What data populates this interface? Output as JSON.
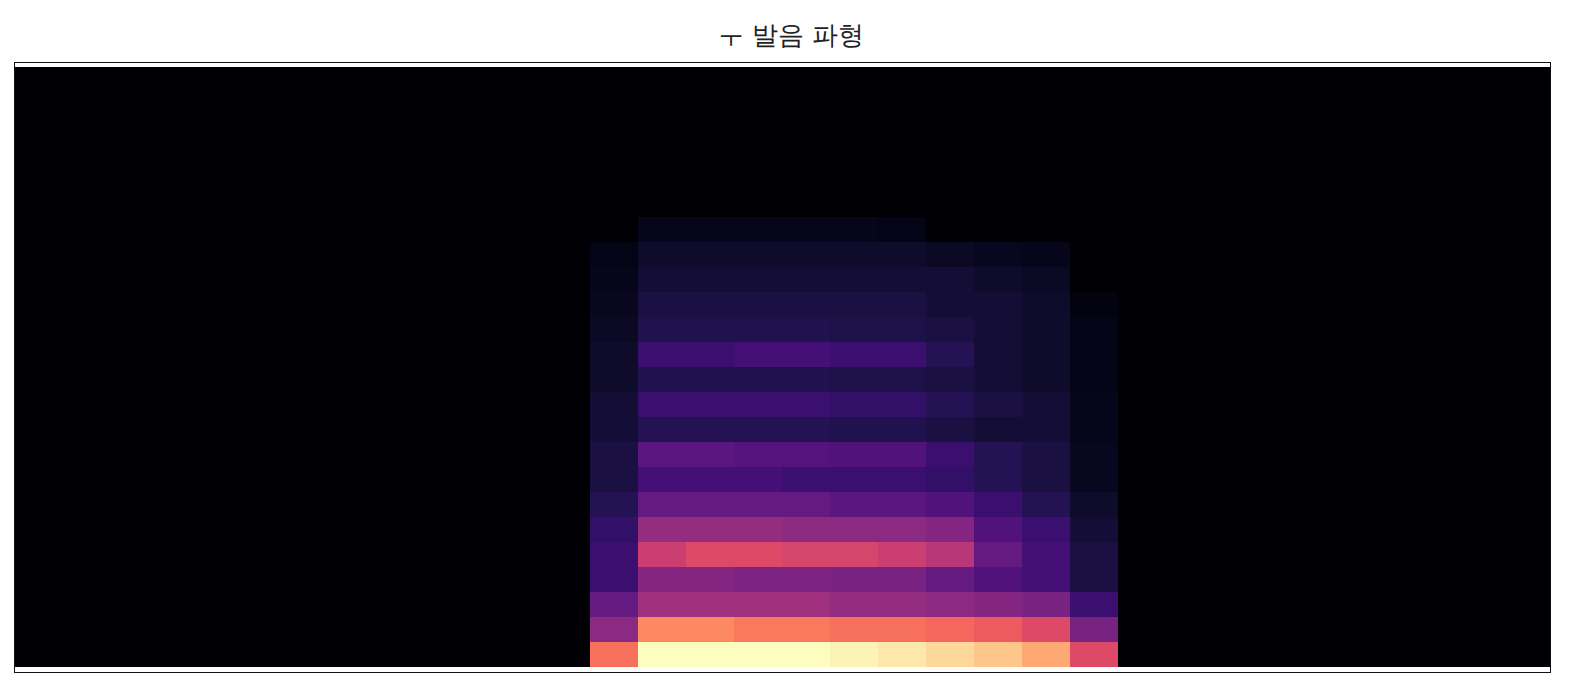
{
  "chart_data": {
    "type": "heatmap",
    "title": "ㅜ 발음 파형",
    "tick_labels": false,
    "zlim": [
      0,
      1
    ],
    "cells": [
      [
        0,
        0,
        0,
        0,
        0,
        0,
        0,
        0,
        0,
        0,
        0,
        0,
        0.7,
        1.0,
        1.0,
        1.0,
        1.0,
        0.98,
        0.95,
        0.92,
        0.88,
        0.82,
        0.6,
        0,
        0,
        0,
        0,
        0,
        0,
        0,
        0,
        0
      ],
      [
        0,
        0,
        0,
        0,
        0,
        0,
        0,
        0,
        0,
        0,
        0,
        0,
        0.4,
        0.75,
        0.75,
        0.72,
        0.72,
        0.7,
        0.7,
        0.68,
        0.65,
        0.6,
        0.35,
        0,
        0,
        0,
        0,
        0,
        0,
        0,
        0,
        0
      ],
      [
        0,
        0,
        0,
        0,
        0,
        0,
        0,
        0,
        0,
        0,
        0,
        0,
        0.3,
        0.45,
        0.45,
        0.45,
        0.45,
        0.42,
        0.42,
        0.4,
        0.38,
        0.35,
        0.2,
        0,
        0,
        0,
        0,
        0,
        0,
        0,
        0,
        0
      ],
      [
        0,
        0,
        0,
        0,
        0,
        0,
        0,
        0,
        0,
        0,
        0,
        0,
        0.2,
        0.38,
        0.38,
        0.36,
        0.36,
        0.35,
        0.35,
        0.3,
        0.25,
        0.22,
        0.12,
        0,
        0,
        0,
        0,
        0,
        0,
        0,
        0,
        0
      ],
      [
        0,
        0,
        0,
        0,
        0,
        0,
        0,
        0,
        0,
        0,
        0,
        0,
        0.2,
        0.55,
        0.6,
        0.6,
        0.58,
        0.58,
        0.55,
        0.5,
        0.3,
        0.22,
        0.12,
        0,
        0,
        0,
        0,
        0,
        0,
        0,
        0,
        0
      ],
      [
        0,
        0,
        0,
        0,
        0,
        0,
        0,
        0,
        0,
        0,
        0,
        0,
        0.18,
        0.42,
        0.42,
        0.42,
        0.4,
        0.4,
        0.4,
        0.38,
        0.25,
        0.2,
        0.1,
        0,
        0,
        0,
        0,
        0,
        0,
        0,
        0,
        0
      ],
      [
        0,
        0,
        0,
        0,
        0,
        0,
        0,
        0,
        0,
        0,
        0,
        0,
        0.15,
        0.3,
        0.3,
        0.3,
        0.3,
        0.28,
        0.28,
        0.25,
        0.2,
        0.15,
        0.08,
        0,
        0,
        0,
        0,
        0,
        0,
        0,
        0,
        0
      ],
      [
        0,
        0,
        0,
        0,
        0,
        0,
        0,
        0,
        0,
        0,
        0,
        0,
        0.12,
        0.22,
        0.22,
        0.22,
        0.2,
        0.2,
        0.2,
        0.18,
        0.15,
        0.12,
        0.06,
        0,
        0,
        0,
        0,
        0,
        0,
        0,
        0,
        0
      ],
      [
        0,
        0,
        0,
        0,
        0,
        0,
        0,
        0,
        0,
        0,
        0,
        0,
        0.12,
        0.28,
        0.28,
        0.26,
        0.26,
        0.25,
        0.25,
        0.2,
        0.15,
        0.12,
        0.06,
        0,
        0,
        0,
        0,
        0,
        0,
        0,
        0,
        0
      ],
      [
        0,
        0,
        0,
        0,
        0,
        0,
        0,
        0,
        0,
        0,
        0,
        0,
        0.1,
        0.15,
        0.15,
        0.15,
        0.15,
        0.14,
        0.14,
        0.12,
        0.1,
        0.1,
        0.05,
        0,
        0,
        0,
        0,
        0,
        0,
        0,
        0,
        0
      ],
      [
        0,
        0,
        0,
        0,
        0,
        0,
        0,
        0,
        0,
        0,
        0,
        0,
        0.1,
        0.2,
        0.2,
        0.2,
        0.2,
        0.18,
        0.18,
        0.15,
        0.12,
        0.1,
        0.05,
        0,
        0,
        0,
        0,
        0,
        0,
        0,
        0,
        0
      ],
      [
        0,
        0,
        0,
        0,
        0,
        0,
        0,
        0,
        0,
        0,
        0,
        0,
        0.08,
        0.14,
        0.14,
        0.14,
        0.14,
        0.13,
        0.13,
        0.12,
        0.1,
        0.08,
        0.04,
        0,
        0,
        0,
        0,
        0,
        0,
        0,
        0,
        0
      ],
      [
        0,
        0,
        0,
        0,
        0,
        0,
        0,
        0,
        0,
        0,
        0,
        0,
        0.08,
        0.2,
        0.2,
        0.22,
        0.22,
        0.2,
        0.2,
        0.15,
        0.1,
        0.08,
        0.04,
        0,
        0,
        0,
        0,
        0,
        0,
        0,
        0,
        0
      ],
      [
        0,
        0,
        0,
        0,
        0,
        0,
        0,
        0,
        0,
        0,
        0,
        0,
        0.07,
        0.14,
        0.14,
        0.14,
        0.14,
        0.13,
        0.13,
        0.12,
        0.1,
        0.08,
        0.04,
        0,
        0,
        0,
        0,
        0,
        0,
        0,
        0,
        0
      ],
      [
        0,
        0,
        0,
        0,
        0,
        0,
        0,
        0,
        0,
        0,
        0,
        0,
        0.06,
        0.12,
        0.12,
        0.12,
        0.12,
        0.12,
        0.12,
        0.1,
        0.1,
        0.08,
        0.03,
        0,
        0,
        0,
        0,
        0,
        0,
        0,
        0,
        0
      ],
      [
        0,
        0,
        0,
        0,
        0,
        0,
        0,
        0,
        0,
        0,
        0,
        0,
        0.05,
        0.1,
        0.1,
        0.1,
        0.1,
        0.1,
        0.1,
        0.1,
        0.08,
        0.07,
        0,
        0,
        0,
        0,
        0,
        0,
        0,
        0,
        0,
        0
      ],
      [
        0,
        0,
        0,
        0,
        0,
        0,
        0,
        0,
        0,
        0,
        0,
        0,
        0.04,
        0.08,
        0.08,
        0.08,
        0.08,
        0.08,
        0.08,
        0.07,
        0.06,
        0.05,
        0,
        0,
        0,
        0,
        0,
        0,
        0,
        0,
        0,
        0
      ],
      [
        0,
        0,
        0,
        0,
        0,
        0,
        0,
        0,
        0,
        0,
        0,
        0,
        0,
        0.05,
        0.05,
        0.05,
        0.05,
        0.05,
        0.04,
        0,
        0,
        0,
        0,
        0,
        0,
        0,
        0,
        0,
        0,
        0,
        0,
        0
      ],
      [
        0,
        0,
        0,
        0,
        0,
        0,
        0,
        0,
        0,
        0,
        0,
        0,
        0,
        0,
        0,
        0,
        0,
        0,
        0,
        0,
        0,
        0,
        0,
        0,
        0,
        0,
        0,
        0,
        0,
        0,
        0,
        0
      ],
      [
        0,
        0,
        0,
        0,
        0,
        0,
        0,
        0,
        0,
        0,
        0,
        0,
        0,
        0,
        0,
        0,
        0,
        0,
        0,
        0,
        0,
        0,
        0,
        0,
        0,
        0,
        0,
        0,
        0,
        0,
        0,
        0
      ],
      [
        0,
        0,
        0,
        0,
        0,
        0,
        0,
        0,
        0,
        0,
        0,
        0,
        0,
        0,
        0,
        0,
        0,
        0,
        0,
        0,
        0,
        0,
        0,
        0,
        0,
        0,
        0,
        0,
        0,
        0,
        0,
        0
      ],
      [
        0,
        0,
        0,
        0,
        0,
        0,
        0,
        0,
        0,
        0,
        0,
        0,
        0,
        0,
        0,
        0,
        0,
        0,
        0,
        0,
        0,
        0,
        0,
        0,
        0,
        0,
        0,
        0,
        0,
        0,
        0,
        0
      ],
      [
        0,
        0,
        0,
        0,
        0,
        0,
        0,
        0,
        0,
        0,
        0,
        0,
        0,
        0,
        0,
        0,
        0,
        0,
        0,
        0,
        0,
        0,
        0,
        0,
        0,
        0,
        0,
        0,
        0,
        0,
        0,
        0
      ],
      [
        0,
        0,
        0,
        0,
        0,
        0,
        0,
        0,
        0,
        0,
        0,
        0,
        0,
        0,
        0,
        0,
        0,
        0,
        0,
        0,
        0,
        0,
        0,
        0,
        0,
        0,
        0,
        0,
        0,
        0,
        0,
        0
      ]
    ]
  }
}
